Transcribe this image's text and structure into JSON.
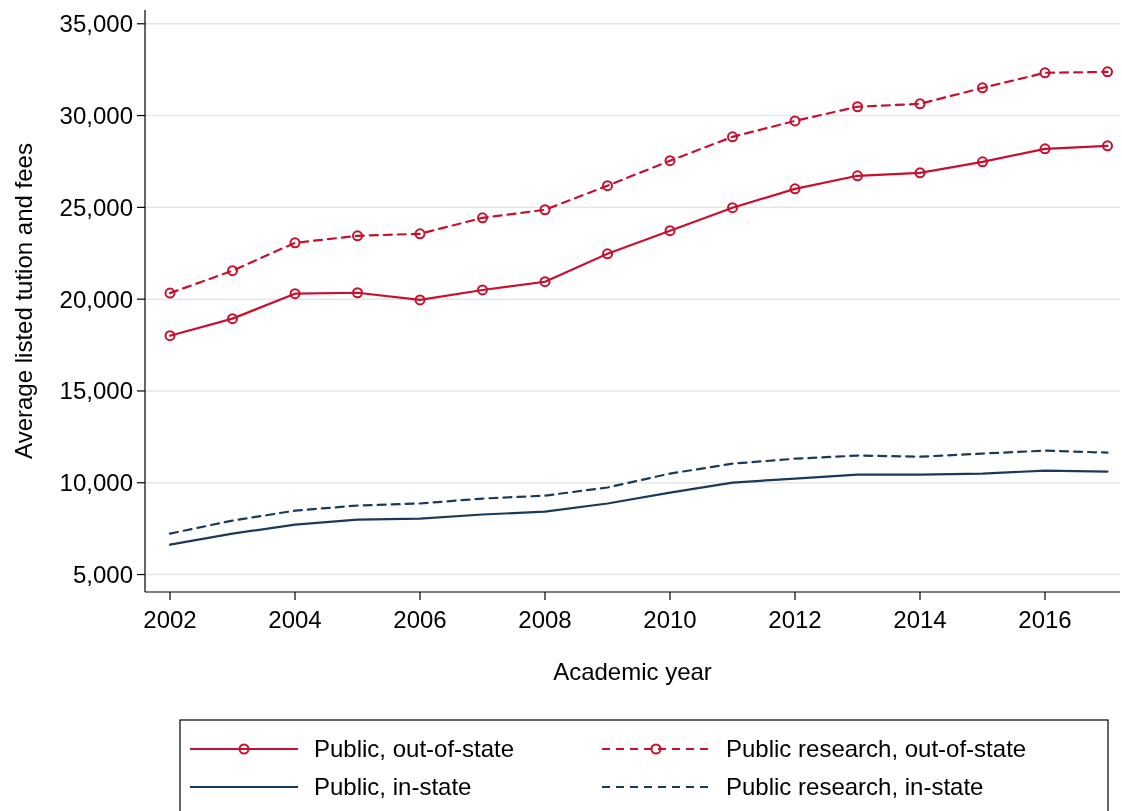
{
  "chart_data": {
    "type": "line",
    "xlabel": "Academic year",
    "ylabel": "Average listed tution and fees",
    "x": [
      2002,
      2003,
      2004,
      2005,
      2006,
      2007,
      2008,
      2009,
      2010,
      2011,
      2012,
      2013,
      2014,
      2015,
      2016,
      2017
    ],
    "series": [
      {
        "name": "Public, out-of-state",
        "color": "#c8102e",
        "marker": "circle",
        "line_style": "solid",
        "values": [
          18010,
          18940,
          20300,
          20350,
          19960,
          20500,
          20950,
          22470,
          23730,
          24980,
          26010,
          26720,
          26880,
          27480,
          28190,
          28350
        ]
      },
      {
        "name": "Public research, out-of-state",
        "color": "#c8102e",
        "marker": "circle",
        "line_style": "dashed",
        "values": [
          20330,
          21550,
          23070,
          23450,
          23560,
          24430,
          24870,
          26180,
          27540,
          28840,
          29710,
          30480,
          30640,
          31510,
          32330,
          32380
        ]
      },
      {
        "name": "Public, in-state",
        "color": "#1a3a5c",
        "marker": "none",
        "line_style": "solid",
        "values": [
          6630,
          7230,
          7720,
          7990,
          8050,
          8270,
          8430,
          8870,
          9460,
          10010,
          10230,
          10440,
          10440,
          10500,
          10660,
          10610
        ]
      },
      {
        "name": "Public research, in-state",
        "color": "#1a3a5c",
        "marker": "none",
        "line_style": "dashed",
        "values": [
          7230,
          7940,
          8480,
          8760,
          8870,
          9140,
          9300,
          9740,
          10500,
          11040,
          11310,
          11480,
          11420,
          11590,
          11750,
          11640
        ]
      }
    ],
    "xlim": [
      2001.6,
      2017.2
    ],
    "xticks": [
      2002,
      2004,
      2006,
      2008,
      2010,
      2012,
      2014,
      2016
    ],
    "ylim": [
      4050,
      35750
    ],
    "yticks": [
      {
        "value": 5000,
        "label": "5,000"
      },
      {
        "value": 10000,
        "label": "10,000"
      },
      {
        "value": 15000,
        "label": "15,000"
      },
      {
        "value": 20000,
        "label": "20,000"
      },
      {
        "value": 25000,
        "label": "25,000"
      },
      {
        "value": 30000,
        "label": "30,000"
      },
      {
        "value": 35000,
        "label": "35,000"
      }
    ],
    "grid": "y",
    "legend": "bottom"
  }
}
